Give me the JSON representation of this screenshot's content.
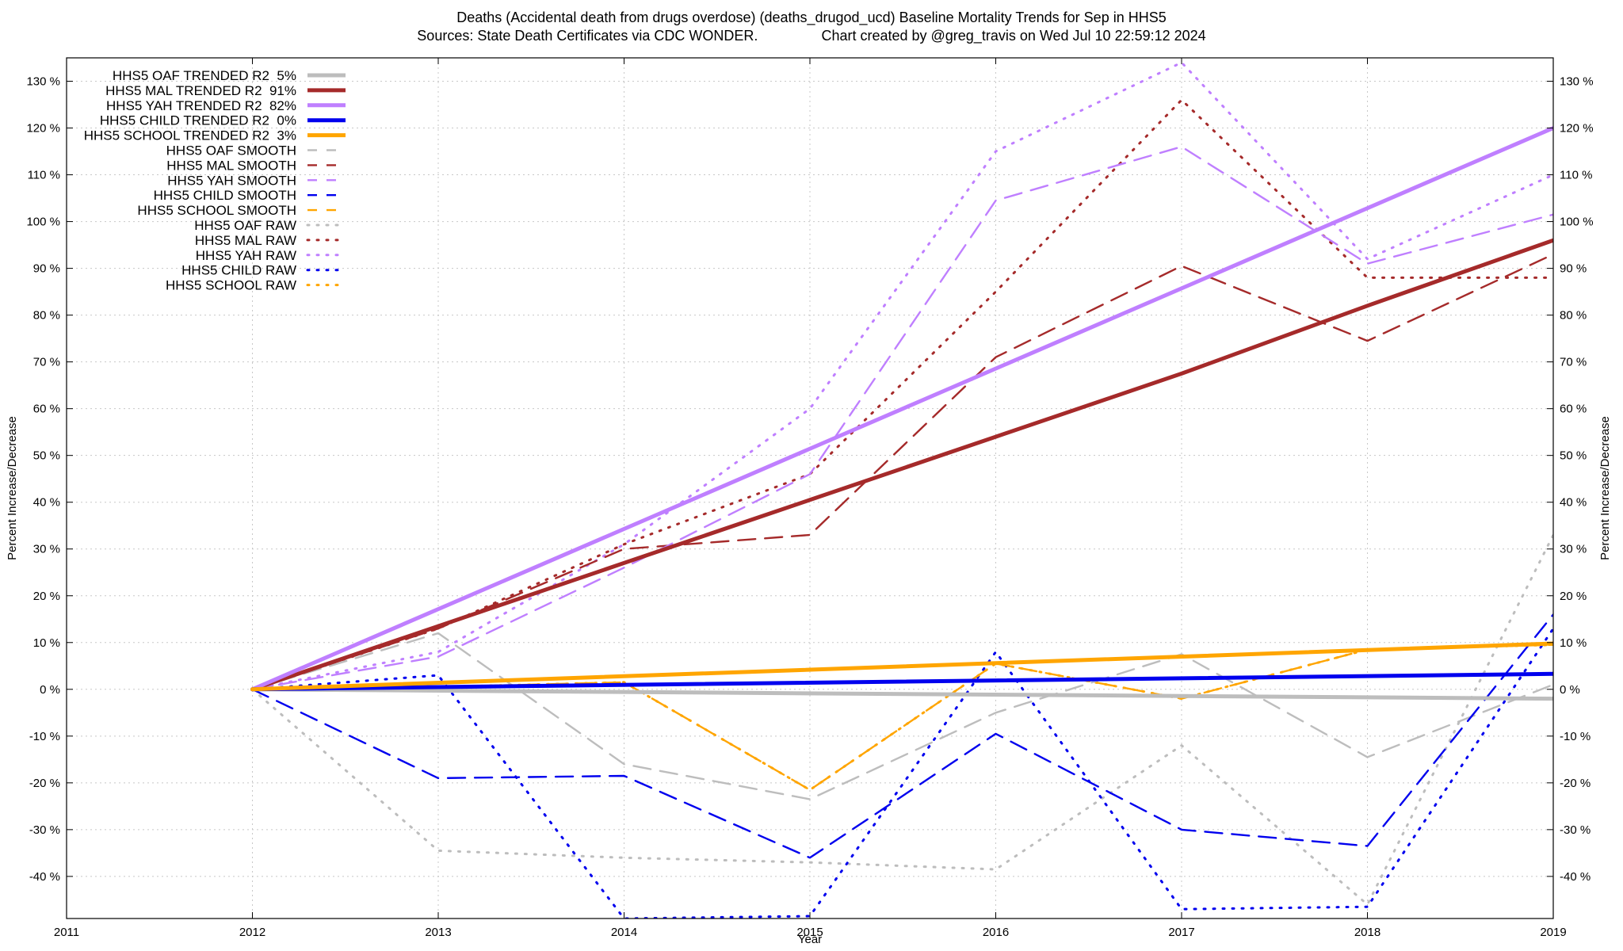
{
  "chart_data": {
    "type": "line",
    "title_line1": "Deaths (Accidental death from drugs overdose) (deaths_drugod_ucd)  Baseline Mortality Trends for Sep in HHS5",
    "title_line2": "Sources: State Death Certificates via CDC WONDER.                Chart created by @greg_travis on Wed Jul 10 22:59:12 2024",
    "xlabel": "Year",
    "ylabel": "Percent Increase/Decrease",
    "xlim": [
      2011,
      2019
    ],
    "ylim": [
      -49,
      135
    ],
    "x_ticks": [
      "2011",
      "2012",
      "2013",
      "2014",
      "2015",
      "2016",
      "2017",
      "2018",
      "2019"
    ],
    "y_ticks": [
      "-40 %",
      "-30 %",
      "-20 %",
      "-10 %",
      "0 %",
      "10 %",
      "20 %",
      "30 %",
      "40 %",
      "50 %",
      "60 %",
      "70 %",
      "80 %",
      "90 %",
      "100 %",
      "110 %",
      "120 %",
      "130 %"
    ],
    "legend_position": "top-left",
    "grid": true,
    "series": [
      {
        "name": "HHS5 OAF TRENDED R2  5%",
        "style": "trend",
        "color": "#bdbdbd",
        "x": [
          2012,
          2019
        ],
        "y": [
          0,
          -2
        ]
      },
      {
        "name": "HHS5 MAL TRENDED R2  91%",
        "style": "trend",
        "color": "#a52a2a",
        "x": [
          2012,
          2013,
          2014,
          2015,
          2016,
          2017,
          2018,
          2019
        ],
        "y": [
          0,
          13.5,
          27,
          40.5,
          54,
          67.5,
          82,
          96
        ]
      },
      {
        "name": "HHS5 YAH TRENDED R2  82%",
        "style": "trend",
        "color": "#bf7fff",
        "x": [
          2012,
          2019
        ],
        "y": [
          0,
          120
        ]
      },
      {
        "name": "HHS5 CHILD TRENDED R2  0%",
        "style": "trend",
        "color": "#0000ee",
        "x": [
          2012,
          2019
        ],
        "y": [
          0,
          3.3
        ]
      },
      {
        "name": "HHS5 SCHOOL TRENDED R2  3%",
        "style": "trend",
        "color": "#ffa500",
        "x": [
          2012,
          2019
        ],
        "y": [
          0,
          9.8
        ]
      },
      {
        "name": "HHS5 OAF SMOOTH",
        "style": "smooth",
        "color": "#bdbdbd",
        "x": [
          2012,
          2013,
          2014,
          2015,
          2016,
          2017,
          2018,
          2019
        ],
        "y": [
          0,
          12,
          -16,
          -23.5,
          -5,
          7.5,
          -14.5,
          1
        ]
      },
      {
        "name": "HHS5 MAL SMOOTH",
        "style": "smooth",
        "color": "#a52a2a",
        "x": [
          2012,
          2013,
          2014,
          2015,
          2016,
          2017,
          2018,
          2019
        ],
        "y": [
          0,
          13,
          30,
          33,
          71,
          90.5,
          74.5,
          93
        ]
      },
      {
        "name": "HHS5 YAH SMOOTH",
        "style": "smooth",
        "color": "#bf7fff",
        "x": [
          2012,
          2013,
          2014,
          2015,
          2016,
          2017,
          2018,
          2019
        ],
        "y": [
          0,
          7,
          26,
          46,
          104.5,
          116,
          91,
          101.5
        ]
      },
      {
        "name": "HHS5 CHILD SMOOTH",
        "style": "smooth",
        "color": "#0000ee",
        "x": [
          2012,
          2013,
          2014,
          2015,
          2016,
          2017,
          2018,
          2019
        ],
        "y": [
          0,
          -19,
          -18.5,
          -36,
          -9.5,
          -30,
          -33.5,
          16
        ]
      },
      {
        "name": "HHS5 SCHOOL SMOOTH",
        "style": "smooth",
        "color": "#ffa500",
        "x": [
          2012,
          2013,
          2014,
          2015,
          2016,
          2017,
          2018,
          2019
        ],
        "y": [
          0,
          0.5,
          1.5,
          -21.5,
          5.5,
          -2,
          8.5,
          9.5
        ]
      },
      {
        "name": "HHS5 OAF RAW",
        "style": "raw",
        "color": "#bdbdbd",
        "x": [
          2012,
          2013,
          2014,
          2015,
          2016,
          2017,
          2018,
          2019
        ],
        "y": [
          0,
          -34.5,
          -36,
          -37,
          -38.5,
          -12,
          -46,
          33
        ]
      },
      {
        "name": "HHS5 MAL RAW",
        "style": "raw",
        "color": "#a52a2a",
        "x": [
          2012,
          2013,
          2014,
          2015,
          2016,
          2017,
          2018,
          2019
        ],
        "y": [
          0,
          13,
          31,
          46,
          85,
          126,
          88,
          88
        ]
      },
      {
        "name": "HHS5 YAH RAW",
        "style": "raw",
        "color": "#bf7fff",
        "x": [
          2012,
          2013,
          2014,
          2015,
          2016,
          2017,
          2018,
          2019
        ],
        "y": [
          0,
          8,
          31,
          60,
          115,
          134,
          92,
          110
        ]
      },
      {
        "name": "HHS5 CHILD RAW",
        "style": "raw",
        "color": "#0000ee",
        "x": [
          2012,
          2013,
          2014,
          2015,
          2016,
          2017,
          2018,
          2019
        ],
        "y": [
          0,
          3,
          -49,
          -48.5,
          8,
          -47,
          -46.5,
          13
        ]
      },
      {
        "name": "HHS5 SCHOOL RAW",
        "style": "raw",
        "color": "#ffa500",
        "x": [
          2012,
          2013,
          2014,
          2015,
          2016,
          2017,
          2018,
          2019
        ],
        "y": [
          0,
          0.5,
          1.5,
          -21.5,
          5.5,
          -2,
          8.5,
          9.5
        ]
      }
    ]
  }
}
